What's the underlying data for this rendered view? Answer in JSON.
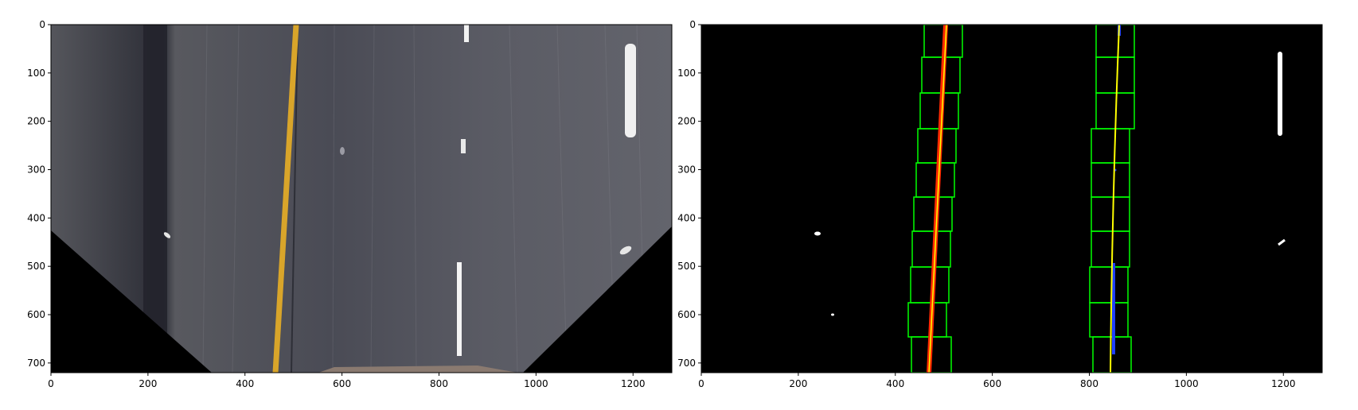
{
  "figure": {
    "panels": [
      {
        "name": "warped-road",
        "x_ticks": [
          "0",
          "200",
          "400",
          "600",
          "800",
          "1000",
          "1200"
        ],
        "y_ticks": [
          "0",
          "100",
          "200",
          "300",
          "400",
          "500",
          "600",
          "700"
        ],
        "x_tick_values": [
          0,
          200,
          400,
          600,
          800,
          1000,
          1200
        ],
        "y_tick_values": [
          0,
          100,
          200,
          300,
          400,
          500,
          600,
          700
        ],
        "xlim": [
          0,
          1280
        ],
        "ylim": [
          720,
          0
        ]
      },
      {
        "name": "sliding-window-fit",
        "x_ticks": [
          "0",
          "200",
          "400",
          "600",
          "800",
          "1000",
          "1200"
        ],
        "y_ticks": [
          "0",
          "100",
          "200",
          "300",
          "400",
          "500",
          "600",
          "700"
        ],
        "x_tick_values": [
          0,
          200,
          400,
          600,
          800,
          1000,
          1200
        ],
        "y_tick_values": [
          0,
          100,
          200,
          300,
          400,
          500,
          600,
          700
        ],
        "xlim": [
          0,
          1280
        ],
        "ylim": [
          720,
          0
        ]
      }
    ],
    "colors": {
      "road_dark": "#3f4049",
      "road_mid": "#55565f",
      "yellow_line": "#d9a52a",
      "white_marking": "#f2f2f2",
      "window_green": "#00ff00",
      "left_lane_pixels": "#ff2a00",
      "right_lane_pixels": "#2040ff",
      "fit_line": "#ffff00",
      "background_black": "#000000"
    }
  }
}
